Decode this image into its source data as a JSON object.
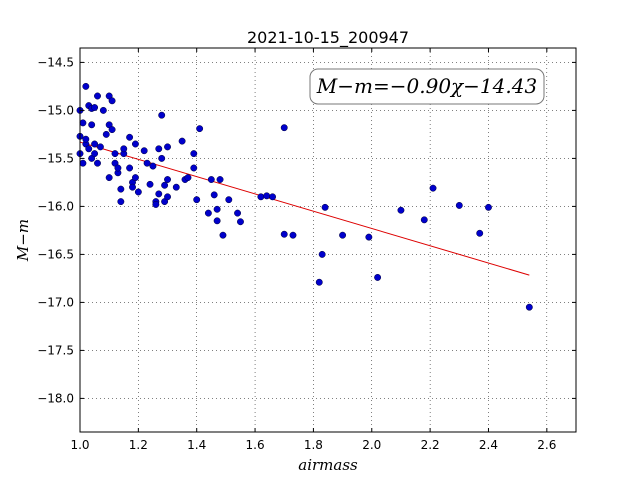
{
  "chart_data": {
    "type": "scatter",
    "title": "2021-10-15_200947",
    "xlabel": "airmass",
    "ylabel": "M−m",
    "xlim": [
      1.0,
      2.7
    ],
    "ylim": [
      -18.35,
      -14.35
    ],
    "xticks": [
      "1.0",
      "1.2",
      "1.4",
      "1.6",
      "1.8",
      "2.0",
      "2.2",
      "2.4",
      "2.6"
    ],
    "yticks": [
      "−14.5",
      "−15.0",
      "−15.5",
      "−16.0",
      "−16.5",
      "−17.0",
      "−17.5",
      "−18.0"
    ],
    "grid": true,
    "annotation": "M−m=−0.90χ−14.43",
    "colors": {
      "points": "#0000cc",
      "fit": "#dd0000"
    },
    "fit": {
      "slope": -0.9,
      "intercept": -14.43,
      "x_range": [
        1.0,
        2.54
      ]
    },
    "series": [
      {
        "points": [
          [
            1.0,
            -15.0
          ],
          [
            1.0,
            -15.27
          ],
          [
            1.0,
            -15.45
          ],
          [
            1.01,
            -15.55
          ],
          [
            1.01,
            -15.13
          ],
          [
            1.02,
            -14.75
          ],
          [
            1.02,
            -15.35
          ],
          [
            1.02,
            -15.3
          ],
          [
            1.03,
            -14.95
          ],
          [
            1.03,
            -15.4
          ],
          [
            1.04,
            -14.98
          ],
          [
            1.04,
            -15.15
          ],
          [
            1.04,
            -15.5
          ],
          [
            1.05,
            -14.97
          ],
          [
            1.05,
            -15.45
          ],
          [
            1.05,
            -15.35
          ],
          [
            1.06,
            -15.55
          ],
          [
            1.06,
            -14.85
          ],
          [
            1.07,
            -15.38
          ],
          [
            1.08,
            -15.0
          ],
          [
            1.09,
            -15.25
          ],
          [
            1.1,
            -15.15
          ],
          [
            1.1,
            -15.7
          ],
          [
            1.1,
            -14.85
          ],
          [
            1.11,
            -14.9
          ],
          [
            1.11,
            -15.2
          ],
          [
            1.12,
            -15.45
          ],
          [
            1.12,
            -15.55
          ],
          [
            1.13,
            -15.65
          ],
          [
            1.13,
            -15.6
          ],
          [
            1.14,
            -15.82
          ],
          [
            1.14,
            -15.95
          ],
          [
            1.15,
            -15.45
          ],
          [
            1.15,
            -15.4
          ],
          [
            1.17,
            -15.28
          ],
          [
            1.17,
            -15.6
          ],
          [
            1.18,
            -15.75
          ],
          [
            1.18,
            -15.8
          ],
          [
            1.19,
            -15.35
          ],
          [
            1.19,
            -15.7
          ],
          [
            1.2,
            -15.85
          ],
          [
            1.22,
            -15.42
          ],
          [
            1.23,
            -15.55
          ],
          [
            1.24,
            -15.77
          ],
          [
            1.25,
            -15.58
          ],
          [
            1.26,
            -15.95
          ],
          [
            1.26,
            -15.98
          ],
          [
            1.27,
            -15.87
          ],
          [
            1.27,
            -15.4
          ],
          [
            1.28,
            -15.5
          ],
          [
            1.28,
            -15.05
          ],
          [
            1.29,
            -15.78
          ],
          [
            1.29,
            -15.95
          ],
          [
            1.3,
            -15.38
          ],
          [
            1.3,
            -15.9
          ],
          [
            1.3,
            -15.72
          ],
          [
            1.33,
            -15.8
          ],
          [
            1.35,
            -15.32
          ],
          [
            1.36,
            -15.72
          ],
          [
            1.37,
            -15.7
          ],
          [
            1.39,
            -15.45
          ],
          [
            1.39,
            -15.6
          ],
          [
            1.4,
            -15.93
          ],
          [
            1.41,
            -15.19
          ],
          [
            1.44,
            -16.07
          ],
          [
            1.45,
            -15.72
          ],
          [
            1.46,
            -15.88
          ],
          [
            1.47,
            -16.03
          ],
          [
            1.47,
            -16.15
          ],
          [
            1.48,
            -15.72
          ],
          [
            1.49,
            -16.3
          ],
          [
            1.51,
            -15.93
          ],
          [
            1.54,
            -16.07
          ],
          [
            1.55,
            -16.16
          ],
          [
            1.62,
            -15.9
          ],
          [
            1.64,
            -15.89
          ],
          [
            1.66,
            -15.9
          ],
          [
            1.7,
            -15.18
          ],
          [
            1.7,
            -16.29
          ],
          [
            1.73,
            -16.3
          ],
          [
            1.82,
            -16.79
          ],
          [
            1.83,
            -16.5
          ],
          [
            1.84,
            -16.01
          ],
          [
            1.9,
            -16.3
          ],
          [
            1.99,
            -16.32
          ],
          [
            2.02,
            -16.74
          ],
          [
            2.1,
            -16.04
          ],
          [
            2.18,
            -16.14
          ],
          [
            2.21,
            -15.81
          ],
          [
            2.3,
            -15.99
          ],
          [
            2.37,
            -16.28
          ],
          [
            2.4,
            -16.01
          ],
          [
            2.54,
            -17.05
          ]
        ]
      }
    ]
  }
}
